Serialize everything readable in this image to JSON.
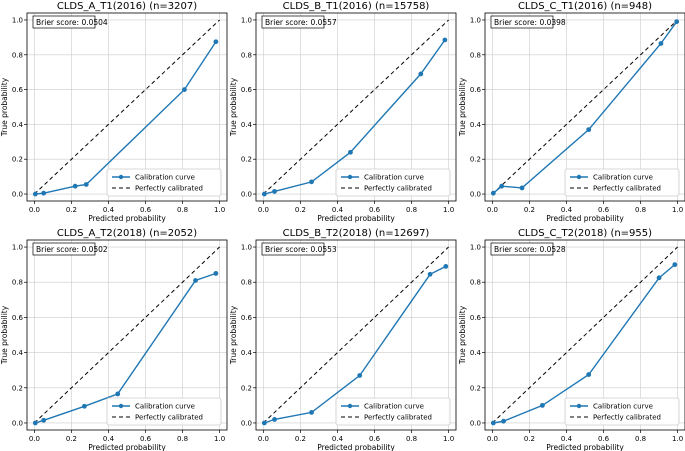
{
  "figure": {
    "legend_labels": {
      "curve": "Calibration curve",
      "diagonal": "Perfectly calibrated"
    },
    "colors": {
      "curve": "#1f77b4",
      "diagonal": "#000000",
      "grid": "#cccccc",
      "spine": "#000000"
    }
  },
  "chart_data": [
    {
      "type": "line",
      "title": "CLDS_A_T1(2016) (n=3207)",
      "xlabel": "Predicted probability",
      "ylabel": "True probability",
      "xlim": [
        -0.04,
        1.04
      ],
      "ylim": [
        -0.04,
        1.04
      ],
      "xticks": [
        "0.0",
        "0.2",
        "0.4",
        "0.6",
        "0.8",
        "1.0"
      ],
      "yticks": [
        "0.0",
        "0.2",
        "0.4",
        "0.6",
        "0.8",
        "1.0"
      ],
      "grid": true,
      "legend_position": "bottom-right",
      "annotation": "Brier score: 0.0504",
      "series": [
        {
          "name": "Calibration curve",
          "style": "solid-marker",
          "x": [
            0.005,
            0.05,
            0.22,
            0.28,
            0.81,
            0.98
          ],
          "y": [
            0.0,
            0.005,
            0.045,
            0.055,
            0.6,
            0.875
          ]
        },
        {
          "name": "Perfectly calibrated",
          "style": "dashed",
          "x": [
            0,
            1
          ],
          "y": [
            0,
            1
          ]
        }
      ]
    },
    {
      "type": "line",
      "title": "CLDS_B_T1(2016) (n=15758)",
      "xlabel": "Predicted probability",
      "ylabel": "True probability",
      "xlim": [
        -0.04,
        1.04
      ],
      "ylim": [
        -0.04,
        1.04
      ],
      "xticks": [
        "0.0",
        "0.2",
        "0.4",
        "0.6",
        "0.8",
        "1.0"
      ],
      "yticks": [
        "0.0",
        "0.2",
        "0.4",
        "0.6",
        "0.8",
        "1.0"
      ],
      "grid": true,
      "legend_position": "bottom-right",
      "annotation": "Brier score: 0.0557",
      "series": [
        {
          "name": "Calibration curve",
          "style": "solid-marker",
          "x": [
            0.005,
            0.06,
            0.26,
            0.47,
            0.85,
            0.98
          ],
          "y": [
            0.0,
            0.015,
            0.07,
            0.24,
            0.69,
            0.885
          ]
        },
        {
          "name": "Perfectly calibrated",
          "style": "dashed",
          "x": [
            0,
            1
          ],
          "y": [
            0,
            1
          ]
        }
      ]
    },
    {
      "type": "line",
      "title": "CLDS_C_T1(2016) (n=948)",
      "xlabel": "Predicted probability",
      "ylabel": "True probability",
      "xlim": [
        -0.04,
        1.04
      ],
      "ylim": [
        -0.04,
        1.04
      ],
      "xticks": [
        "0.0",
        "0.2",
        "0.4",
        "0.6",
        "0.8",
        "1.0"
      ],
      "yticks": [
        "0.0",
        "0.2",
        "0.4",
        "0.6",
        "0.8",
        "1.0"
      ],
      "grid": true,
      "legend_position": "bottom-right",
      "annotation": "Brier score: 0.0398",
      "series": [
        {
          "name": "Calibration curve",
          "style": "solid-marker",
          "x": [
            0.005,
            0.05,
            0.16,
            0.52,
            0.91,
            0.995
          ],
          "y": [
            0.005,
            0.045,
            0.035,
            0.37,
            0.865,
            0.99
          ]
        },
        {
          "name": "Perfectly calibrated",
          "style": "dashed",
          "x": [
            0,
            1
          ],
          "y": [
            0,
            1
          ]
        }
      ]
    },
    {
      "type": "line",
      "title": "CLDS_A_T2(2018) (n=2052)",
      "xlabel": "Predicted probability",
      "ylabel": "True probability",
      "xlim": [
        -0.04,
        1.04
      ],
      "ylim": [
        -0.04,
        1.04
      ],
      "xticks": [
        "0.0",
        "0.2",
        "0.4",
        "0.6",
        "0.8",
        "1.0"
      ],
      "yticks": [
        "0.0",
        "0.2",
        "0.4",
        "0.6",
        "0.8",
        "1.0"
      ],
      "grid": true,
      "legend_position": "bottom-right",
      "annotation": "Brier score: 0.0502",
      "series": [
        {
          "name": "Calibration curve",
          "style": "solid-marker",
          "x": [
            0.005,
            0.05,
            0.27,
            0.45,
            0.87,
            0.98
          ],
          "y": [
            0.0,
            0.015,
            0.095,
            0.165,
            0.81,
            0.85
          ]
        },
        {
          "name": "Perfectly calibrated",
          "style": "dashed",
          "x": [
            0,
            1
          ],
          "y": [
            0,
            1
          ]
        }
      ]
    },
    {
      "type": "line",
      "title": "CLDS_B_T2(2018) (n=12697)",
      "xlabel": "Predicted probability",
      "ylabel": "True probability",
      "xlim": [
        -0.04,
        1.04
      ],
      "ylim": [
        -0.04,
        1.04
      ],
      "xticks": [
        "0.0",
        "0.2",
        "0.4",
        "0.6",
        "0.8",
        "1.0"
      ],
      "yticks": [
        "0.0",
        "0.2",
        "0.4",
        "0.6",
        "0.8",
        "1.0"
      ],
      "grid": true,
      "legend_position": "bottom-right",
      "annotation": "Brier score: 0.0553",
      "series": [
        {
          "name": "Calibration curve",
          "style": "solid-marker",
          "x": [
            0.005,
            0.06,
            0.26,
            0.52,
            0.9,
            0.985
          ],
          "y": [
            0.0,
            0.02,
            0.06,
            0.27,
            0.845,
            0.89
          ]
        },
        {
          "name": "Perfectly calibrated",
          "style": "dashed",
          "x": [
            0,
            1
          ],
          "y": [
            0,
            1
          ]
        }
      ]
    },
    {
      "type": "line",
      "title": "CLDS_C_T2(2018) (n=955)",
      "xlabel": "Predicted probability",
      "ylabel": "True probability",
      "xlim": [
        -0.04,
        1.04
      ],
      "ylim": [
        -0.04,
        1.04
      ],
      "xticks": [
        "0.0",
        "0.2",
        "0.4",
        "0.6",
        "0.8",
        "1.0"
      ],
      "yticks": [
        "0.0",
        "0.2",
        "0.4",
        "0.6",
        "0.8",
        "1.0"
      ],
      "grid": true,
      "legend_position": "bottom-right",
      "annotation": "Brier score: 0.0528",
      "series": [
        {
          "name": "Calibration curve",
          "style": "solid-marker",
          "x": [
            0.005,
            0.06,
            0.27,
            0.52,
            0.9,
            0.985
          ],
          "y": [
            0.0,
            0.01,
            0.1,
            0.275,
            0.825,
            0.9
          ]
        },
        {
          "name": "Perfectly calibrated",
          "style": "dashed",
          "x": [
            0,
            1
          ],
          "y": [
            0,
            1
          ]
        }
      ]
    }
  ]
}
